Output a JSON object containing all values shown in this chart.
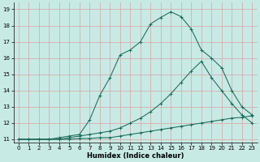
{
  "xlabel": "Humidex (Indice chaleur)",
  "xlim": [
    -0.5,
    23.5
  ],
  "ylim": [
    10.8,
    19.4
  ],
  "xticks": [
    0,
    1,
    2,
    3,
    4,
    5,
    6,
    7,
    8,
    9,
    10,
    11,
    12,
    13,
    14,
    15,
    16,
    17,
    18,
    19,
    20,
    21,
    22,
    23
  ],
  "yticks": [
    11,
    12,
    13,
    14,
    15,
    16,
    17,
    18,
    19
  ],
  "bg_color": "#c8eae5",
  "grid_color": "#d8a8a8",
  "line_color": "#1a6b5a",
  "line1_x": [
    0,
    1,
    2,
    3,
    4,
    5,
    6,
    7,
    8,
    9,
    10,
    11,
    12,
    13,
    14,
    15,
    16,
    17,
    18,
    19,
    20,
    21,
    22,
    23
  ],
  "line1_y": [
    11.0,
    11.0,
    11.0,
    11.0,
    11.0,
    11.0,
    11.05,
    11.05,
    11.1,
    11.1,
    11.2,
    11.3,
    11.4,
    11.5,
    11.6,
    11.7,
    11.8,
    11.9,
    12.0,
    12.1,
    12.2,
    12.3,
    12.35,
    12.45
  ],
  "line2_x": [
    0,
    1,
    2,
    3,
    4,
    5,
    6,
    7,
    8,
    9,
    10,
    11,
    12,
    13,
    14,
    15,
    16,
    17,
    18,
    19,
    20,
    21,
    22,
    23
  ],
  "line2_y": [
    11.0,
    11.0,
    11.0,
    11.0,
    11.0,
    11.1,
    11.2,
    11.3,
    11.4,
    11.5,
    11.7,
    12.0,
    12.3,
    12.7,
    13.2,
    13.8,
    14.5,
    15.2,
    15.8,
    14.8,
    14.0,
    13.2,
    12.5,
    12.0
  ],
  "line3_x": [
    0,
    1,
    2,
    3,
    4,
    5,
    6,
    7,
    8,
    9,
    10,
    11,
    12,
    13,
    14,
    15,
    16,
    17,
    18,
    19,
    20,
    21,
    22,
    23
  ],
  "line3_y": [
    11.0,
    11.0,
    11.0,
    11.0,
    11.1,
    11.2,
    11.3,
    12.2,
    13.7,
    14.8,
    16.2,
    16.5,
    17.0,
    18.1,
    18.5,
    18.85,
    18.55,
    17.8,
    16.5,
    16.0,
    15.4,
    14.0,
    13.0,
    12.5
  ]
}
